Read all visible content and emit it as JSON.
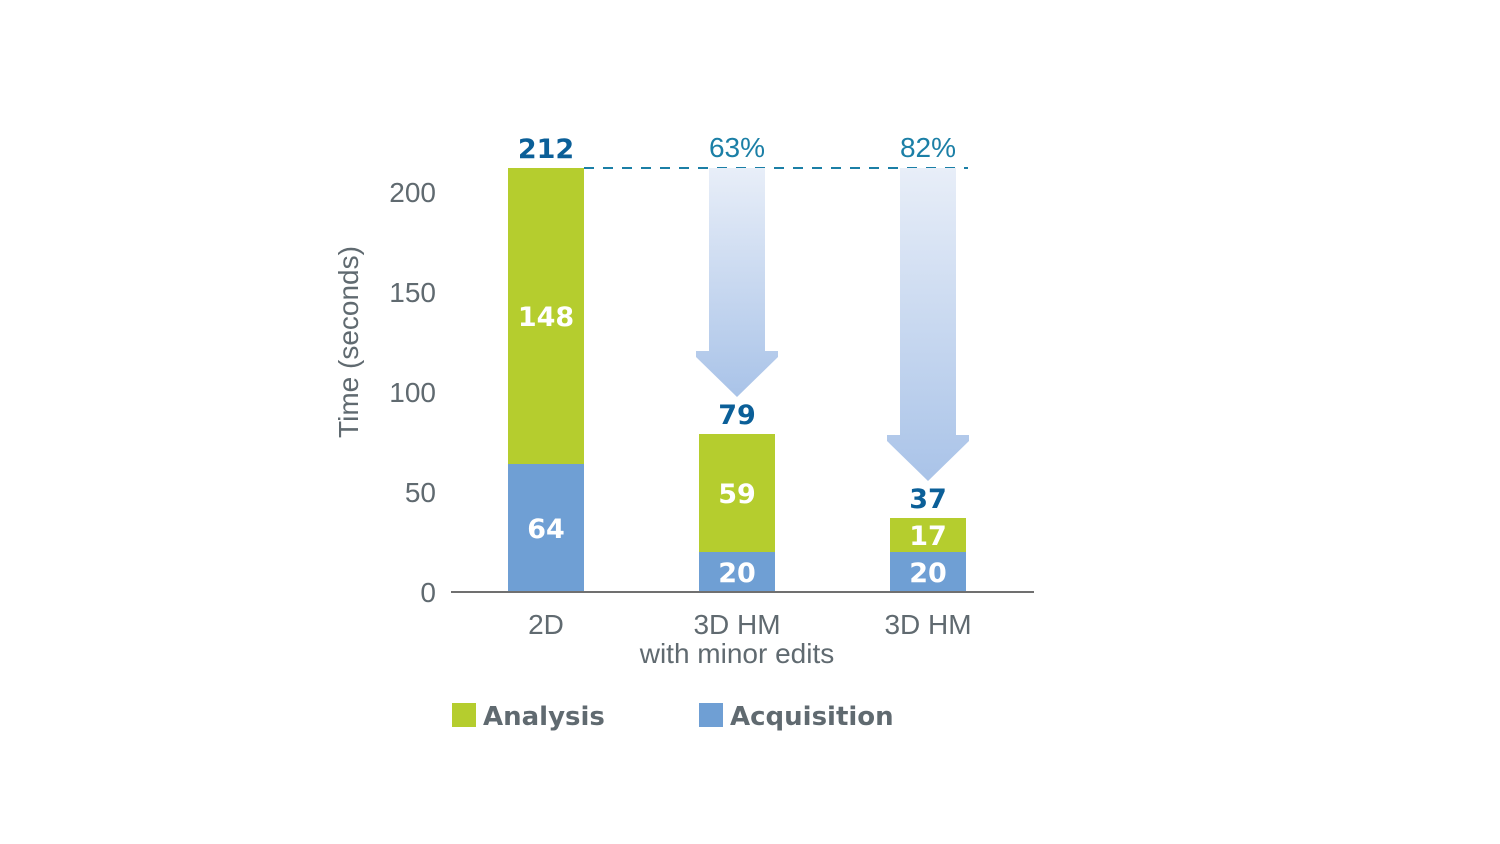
{
  "chart_data": {
    "type": "bar",
    "stacked": true,
    "title": "",
    "ylabel": "Time (seconds)",
    "xlabel": "",
    "ylim": [
      0,
      212
    ],
    "yticks": [
      0,
      50,
      100,
      150,
      200
    ],
    "categories": [
      {
        "line1": "2D",
        "line2": ""
      },
      {
        "line1": "3D HM",
        "line2": "with minor edits"
      },
      {
        "line1": "3D HM",
        "line2": ""
      }
    ],
    "series": [
      {
        "name": "Acquisition",
        "color": "#6f9fd4",
        "values": [
          64,
          20,
          20
        ]
      },
      {
        "name": "Analysis",
        "color": "#b5cd2e",
        "values": [
          148,
          59,
          17
        ]
      }
    ],
    "totals": [
      212,
      79,
      37
    ],
    "reductions": [
      "",
      "63%",
      "82%"
    ],
    "legend": {
      "placement": "bottom",
      "order": [
        "Analysis",
        "Acquisition"
      ]
    },
    "colors": {
      "total_text": "#0b5f98",
      "percent_text": "#1b7fa6",
      "dashed_line": "#1b7fa6",
      "arrow_top": "#e8eef8",
      "arrow_bottom": "#a9c3e8",
      "axis": "#707070"
    },
    "grid": false
  }
}
